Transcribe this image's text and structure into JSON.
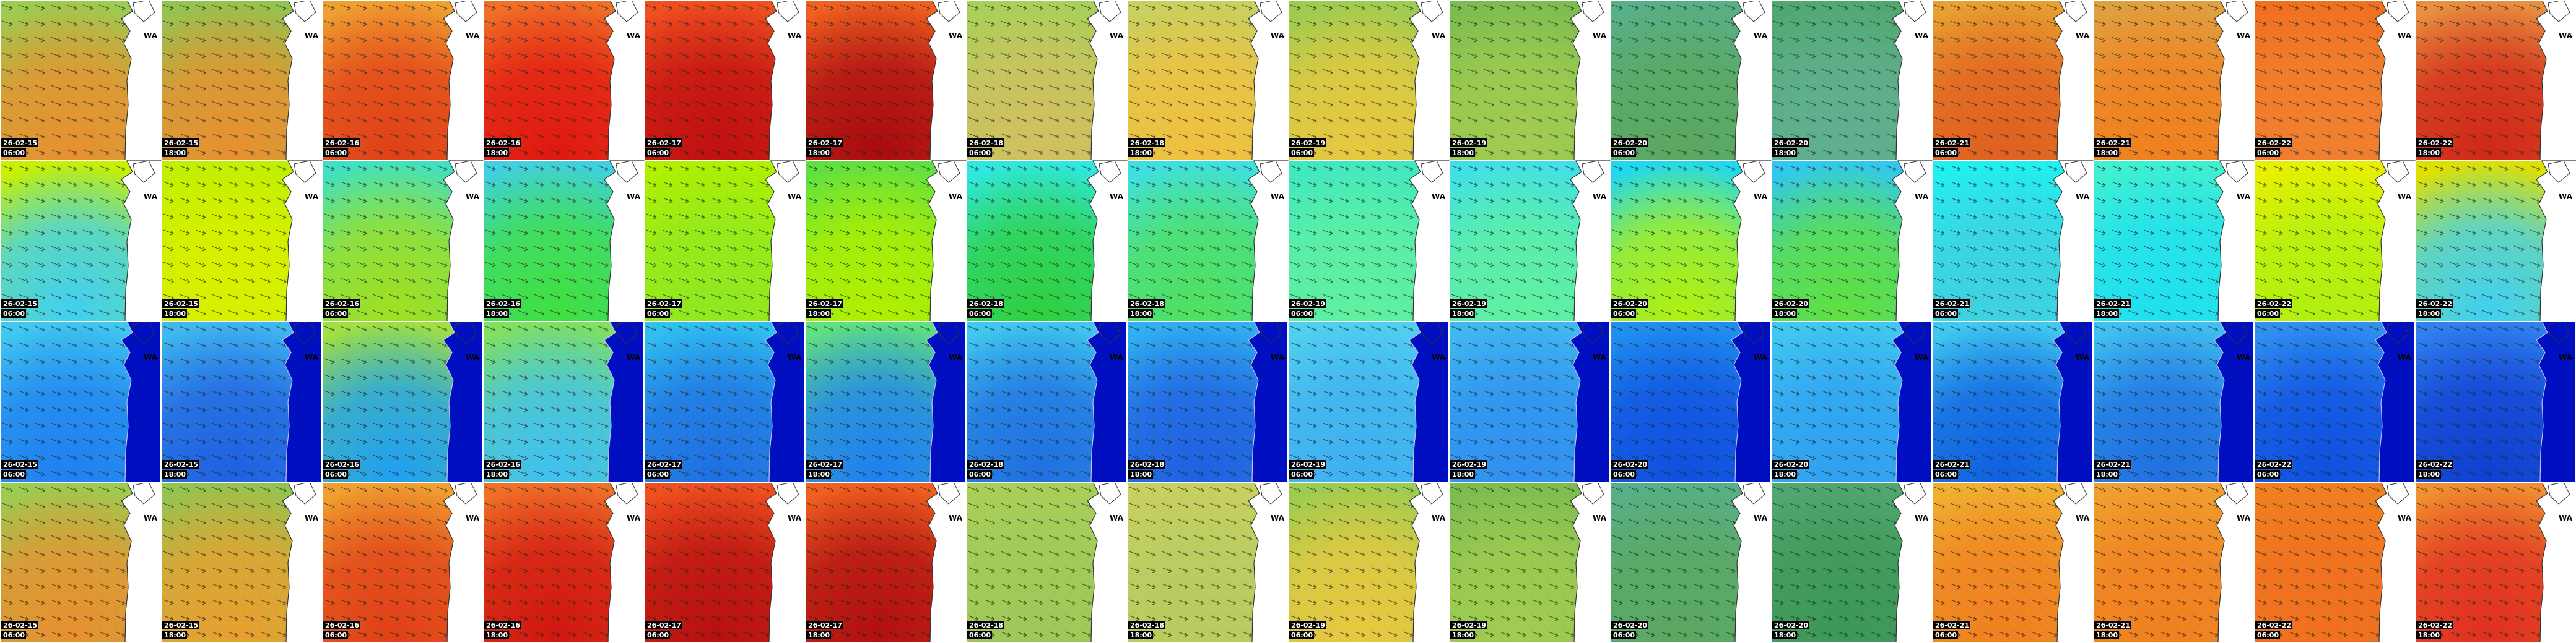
{
  "region_label": "WA",
  "rows": [
    {
      "tiles": [
        {
          "date": "26-02-15",
          "time": "06:00",
          "colors": [
            "#9ccc50",
            "#e89030"
          ]
        },
        {
          "date": "26-02-15",
          "time": "18:00",
          "colors": [
            "#94c450",
            "#e89030"
          ]
        },
        {
          "date": "26-02-16",
          "time": "06:00",
          "colors": [
            "#f0a030",
            "#e04018"
          ]
        },
        {
          "date": "26-02-16",
          "time": "18:00",
          "colors": [
            "#f07028",
            "#e01810"
          ]
        },
        {
          "date": "26-02-17",
          "time": "06:00",
          "colors": [
            "#f05020",
            "#c01010"
          ]
        },
        {
          "date": "26-02-17",
          "time": "18:00",
          "colors": [
            "#f06020",
            "#a80c10"
          ]
        },
        {
          "date": "26-02-18",
          "time": "06:00",
          "colors": [
            "#a8d058",
            "#d0c060"
          ]
        },
        {
          "date": "26-02-18",
          "time": "18:00",
          "colors": [
            "#c8d060",
            "#f0c040"
          ]
        },
        {
          "date": "26-02-19",
          "time": "06:00",
          "colors": [
            "#9ccc50",
            "#e8c840"
          ]
        },
        {
          "date": "26-02-19",
          "time": "18:00",
          "colors": [
            "#7cbc50",
            "#a0cc50"
          ]
        },
        {
          "date": "26-02-20",
          "time": "06:00",
          "colors": [
            "#58b088",
            "#5aa860"
          ]
        },
        {
          "date": "26-02-20",
          "time": "18:00",
          "colors": [
            "#50a870",
            "#60b090"
          ]
        },
        {
          "date": "26-02-21",
          "time": "06:00",
          "colors": [
            "#e8a030",
            "#e06020"
          ]
        },
        {
          "date": "26-02-21",
          "time": "18:00",
          "colors": [
            "#e0a040",
            "#f08020"
          ]
        },
        {
          "date": "26-02-22",
          "time": "06:00",
          "colors": [
            "#f07020",
            "#f08030"
          ]
        },
        {
          "date": "26-02-22",
          "time": "18:00",
          "colors": [
            "#e89040",
            "#d02818"
          ]
        }
      ]
    },
    {
      "tiles": [
        {
          "date": "26-02-15",
          "time": "06:00",
          "colors": [
            "#c8f000",
            "#40d0f0"
          ]
        },
        {
          "date": "26-02-15",
          "time": "18:00",
          "colors": [
            "#c0f000",
            "#d8f000"
          ]
        },
        {
          "date": "26-02-16",
          "time": "06:00",
          "colors": [
            "#40e0c0",
            "#a0e020"
          ]
        },
        {
          "date": "26-02-16",
          "time": "18:00",
          "colors": [
            "#40d0e0",
            "#40e040"
          ]
        },
        {
          "date": "26-02-17",
          "time": "06:00",
          "colors": [
            "#b0f000",
            "#90e820"
          ]
        },
        {
          "date": "26-02-17",
          "time": "18:00",
          "colors": [
            "#60e040",
            "#b0f000"
          ]
        },
        {
          "date": "26-02-18",
          "time": "06:00",
          "colors": [
            "#30e8e0",
            "#30d040"
          ]
        },
        {
          "date": "26-02-18",
          "time": "18:00",
          "colors": [
            "#40e0e0",
            "#50e060"
          ]
        },
        {
          "date": "26-02-19",
          "time": "06:00",
          "colors": [
            "#40e8c0",
            "#60f0a0"
          ]
        },
        {
          "date": "26-02-19",
          "time": "18:00",
          "colors": [
            "#40e0e8",
            "#60f0a0"
          ]
        },
        {
          "date": "26-02-20",
          "time": "06:00",
          "colors": [
            "#20d8f0",
            "#b0f010"
          ]
        },
        {
          "date": "26-02-20",
          "time": "18:00",
          "colors": [
            "#30c8f0",
            "#60e040"
          ]
        },
        {
          "date": "26-02-21",
          "time": "06:00",
          "colors": [
            "#20f0f0",
            "#40d0e0"
          ]
        },
        {
          "date": "26-02-21",
          "time": "18:00",
          "colors": [
            "#40f0d0",
            "#20e0f0"
          ]
        },
        {
          "date": "26-02-22",
          "time": "06:00",
          "colors": [
            "#e8f000",
            "#b0f010"
          ]
        },
        {
          "date": "26-02-22",
          "time": "18:00",
          "colors": [
            "#e0e000",
            "#40d0f0"
          ]
        }
      ]
    },
    {
      "tiles": [
        {
          "date": "26-02-15",
          "time": "06:00",
          "colors": [
            "#40c8f0",
            "#2080f0"
          ]
        },
        {
          "date": "26-02-15",
          "time": "18:00",
          "colors": [
            "#40b8f0",
            "#2060e0"
          ]
        },
        {
          "date": "26-02-16",
          "time": "06:00",
          "colors": [
            "#a0e040",
            "#20a0f0"
          ]
        },
        {
          "date": "26-02-16",
          "time": "18:00",
          "colors": [
            "#80e060",
            "#40c0f0"
          ]
        },
        {
          "date": "26-02-17",
          "time": "06:00",
          "colors": [
            "#30c0f0",
            "#2070e0"
          ]
        },
        {
          "date": "26-02-17",
          "time": "18:00",
          "colors": [
            "#60e080",
            "#2080f0"
          ]
        },
        {
          "date": "26-02-18",
          "time": "06:00",
          "colors": [
            "#40c8f0",
            "#2070e0"
          ]
        },
        {
          "date": "26-02-18",
          "time": "18:00",
          "colors": [
            "#30b0f0",
            "#2060e0"
          ]
        },
        {
          "date": "26-02-19",
          "time": "06:00",
          "colors": [
            "#50d0f0",
            "#40b0f0"
          ]
        },
        {
          "date": "26-02-19",
          "time": "18:00",
          "colors": [
            "#40b8f0",
            "#3090f0"
          ]
        },
        {
          "date": "26-02-20",
          "time": "06:00",
          "colors": [
            "#2090f0",
            "#1050e0"
          ]
        },
        {
          "date": "26-02-20",
          "time": "18:00",
          "colors": [
            "#40c8f0",
            "#30a0f0"
          ]
        },
        {
          "date": "26-02-21",
          "time": "06:00",
          "colors": [
            "#40c8f0",
            "#1060e0"
          ]
        },
        {
          "date": "26-02-21",
          "time": "18:00",
          "colors": [
            "#40c0f0",
            "#2070e0"
          ]
        },
        {
          "date": "26-02-22",
          "time": "06:00",
          "colors": [
            "#3090f0",
            "#1050e0"
          ]
        },
        {
          "date": "26-02-22",
          "time": "18:00",
          "colors": [
            "#3080f0",
            "#1040d0"
          ]
        }
      ]
    },
    {
      "tiles": [
        {
          "date": "26-02-15",
          "time": "06:00",
          "colors": [
            "#9ccc50",
            "#e89030"
          ]
        },
        {
          "date": "26-02-15",
          "time": "18:00",
          "colors": [
            "#94c450",
            "#e8a030"
          ]
        },
        {
          "date": "26-02-16",
          "time": "06:00",
          "colors": [
            "#f0a030",
            "#e04018"
          ]
        },
        {
          "date": "26-02-16",
          "time": "18:00",
          "colors": [
            "#f07028",
            "#d01810"
          ]
        },
        {
          "date": "26-02-17",
          "time": "06:00",
          "colors": [
            "#f05020",
            "#b81010"
          ]
        },
        {
          "date": "26-02-17",
          "time": "18:00",
          "colors": [
            "#f06020",
            "#b01010"
          ]
        },
        {
          "date": "26-02-18",
          "time": "06:00",
          "colors": [
            "#a8d058",
            "#a0c858"
          ]
        },
        {
          "date": "26-02-18",
          "time": "18:00",
          "colors": [
            "#c8d060",
            "#b8cc60"
          ]
        },
        {
          "date": "26-02-19",
          "time": "06:00",
          "colors": [
            "#9ccc50",
            "#e8c840"
          ]
        },
        {
          "date": "26-02-19",
          "time": "18:00",
          "colors": [
            "#7cbc50",
            "#a0cc50"
          ]
        },
        {
          "date": "26-02-20",
          "time": "06:00",
          "colors": [
            "#58b088",
            "#5aa860"
          ]
        },
        {
          "date": "26-02-20",
          "time": "18:00",
          "colors": [
            "#50a870",
            "#3c9858"
          ]
        },
        {
          "date": "26-02-21",
          "time": "06:00",
          "colors": [
            "#f0b030",
            "#f08020"
          ]
        },
        {
          "date": "26-02-21",
          "time": "18:00",
          "colors": [
            "#f0a030",
            "#f08020"
          ]
        },
        {
          "date": "26-02-22",
          "time": "06:00",
          "colors": [
            "#f08020",
            "#f07020"
          ]
        },
        {
          "date": "26-02-22",
          "time": "18:00",
          "colors": [
            "#f09030",
            "#e03020"
          ]
        }
      ]
    }
  ]
}
